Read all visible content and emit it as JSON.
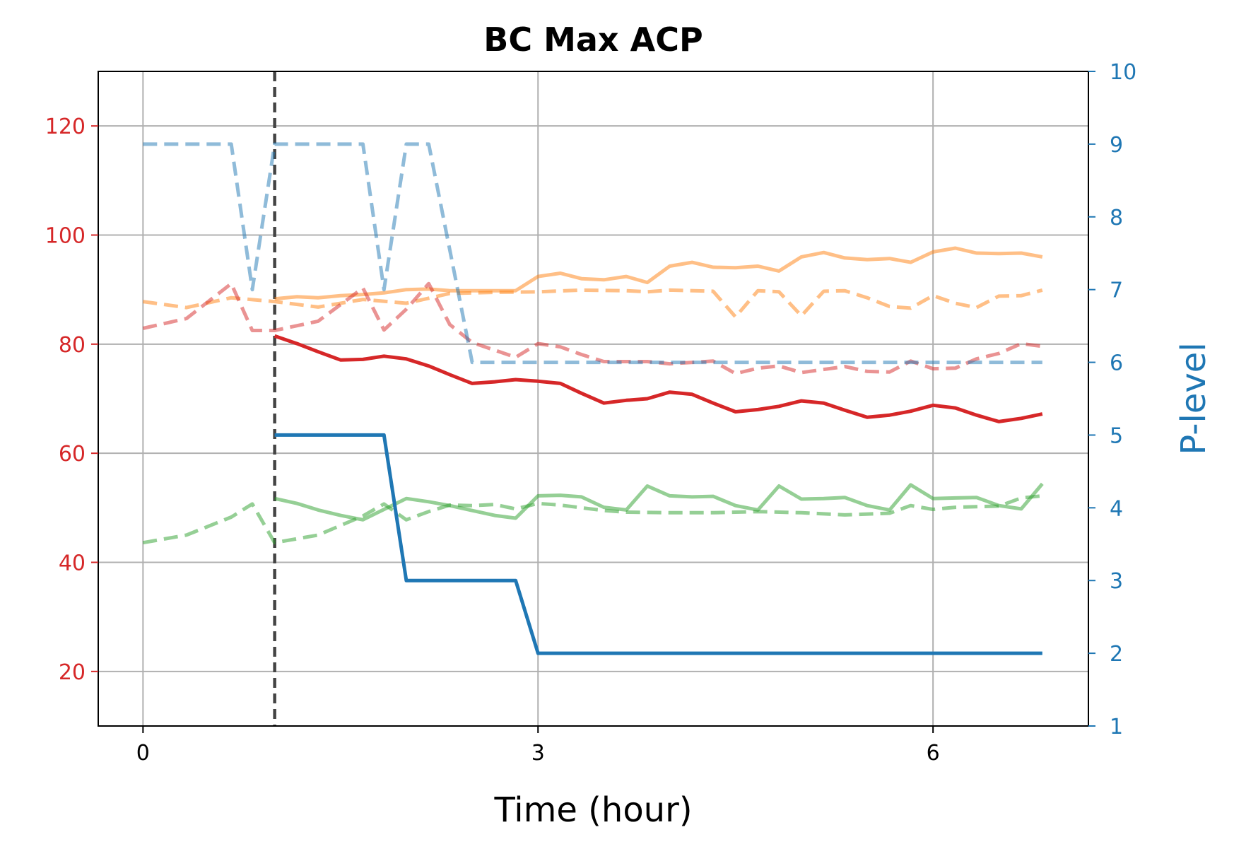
{
  "chart_data": {
    "type": "line",
    "title": "BC Max ACP",
    "xlabel": "Time (hour)",
    "ylabel": "",
    "y2label": "P-level",
    "xlim": [
      -0.34,
      7.18
    ],
    "ylim": [
      10,
      130
    ],
    "y2lim": [
      1,
      10
    ],
    "xticks": [
      0,
      3,
      6
    ],
    "yticks": [
      20,
      40,
      60,
      80,
      100,
      120
    ],
    "y2ticks": [
      1,
      2,
      3,
      4,
      5,
      6,
      7,
      8,
      9,
      10
    ],
    "grid": true,
    "vline": {
      "x": 1.0
    },
    "colors": {
      "left_axis": "#d62728",
      "right_axis": "#1f77b4",
      "vline": "#444444"
    },
    "series": [
      {
        "axis": "left",
        "color": "#ff7f0e",
        "style": "solid",
        "opacity": 0.5,
        "points": [
          [
            1.0,
            88.3
          ],
          [
            1.17,
            88.7
          ],
          [
            1.33,
            88.5
          ],
          [
            1.5,
            88.9
          ],
          [
            1.67,
            89.1
          ],
          [
            1.83,
            89.4
          ],
          [
            2.0,
            90.0
          ],
          [
            2.17,
            90.1
          ],
          [
            2.33,
            89.8
          ],
          [
            2.5,
            89.8
          ],
          [
            2.67,
            89.8
          ],
          [
            2.83,
            89.8
          ],
          [
            3.0,
            92.4
          ],
          [
            3.17,
            93.0
          ],
          [
            3.33,
            92.0
          ],
          [
            3.5,
            91.8
          ],
          [
            3.67,
            92.4
          ],
          [
            3.83,
            91.3
          ],
          [
            4.0,
            94.3
          ],
          [
            4.17,
            95.0
          ],
          [
            4.33,
            94.1
          ],
          [
            4.5,
            94.0
          ],
          [
            4.67,
            94.3
          ],
          [
            4.83,
            93.4
          ],
          [
            5.0,
            96.0
          ],
          [
            5.17,
            96.8
          ],
          [
            5.33,
            95.8
          ],
          [
            5.5,
            95.5
          ],
          [
            5.67,
            95.7
          ],
          [
            5.83,
            95.0
          ],
          [
            6.0,
            96.9
          ],
          [
            6.17,
            97.6
          ],
          [
            6.33,
            96.7
          ],
          [
            6.5,
            96.6
          ],
          [
            6.67,
            96.7
          ],
          [
            6.83,
            96.0
          ]
        ]
      },
      {
        "axis": "left",
        "color": "#ff7f0e",
        "style": "dashed",
        "opacity": 0.5,
        "points": [
          [
            0,
            87.8
          ],
          [
            0.33,
            86.7
          ],
          [
            0.67,
            88.5
          ],
          [
            1.0,
            87.8
          ],
          [
            1.33,
            86.8
          ],
          [
            1.67,
            88.2
          ],
          [
            2.0,
            87.5
          ],
          [
            2.33,
            89.3
          ],
          [
            2.67,
            89.5
          ],
          [
            3.0,
            89.6
          ],
          [
            3.33,
            89.9
          ],
          [
            3.67,
            89.8
          ],
          [
            3.83,
            89.6
          ],
          [
            4.0,
            89.9
          ],
          [
            4.33,
            89.7
          ],
          [
            4.5,
            85.0
          ],
          [
            4.67,
            89.8
          ],
          [
            4.83,
            89.6
          ],
          [
            5.0,
            85.2
          ],
          [
            5.17,
            89.7
          ],
          [
            5.33,
            89.8
          ],
          [
            5.5,
            88.5
          ],
          [
            5.67,
            86.9
          ],
          [
            5.83,
            86.6
          ],
          [
            6.0,
            88.9
          ],
          [
            6.17,
            87.5
          ],
          [
            6.33,
            86.7
          ],
          [
            6.5,
            88.8
          ],
          [
            6.67,
            88.9
          ],
          [
            6.83,
            89.9
          ]
        ]
      },
      {
        "axis": "left",
        "color": "#d62728",
        "style": "dashed",
        "opacity": 0.5,
        "points": [
          [
            0,
            82.9
          ],
          [
            0.33,
            84.7
          ],
          [
            0.67,
            91.1
          ],
          [
            0.83,
            82.5
          ],
          [
            1.0,
            82.5
          ],
          [
            1.33,
            84.2
          ],
          [
            1.67,
            90.3
          ],
          [
            1.83,
            82.6
          ],
          [
            2.0,
            86.4
          ],
          [
            2.17,
            91.1
          ],
          [
            2.33,
            83.6
          ],
          [
            2.5,
            80.3
          ],
          [
            2.67,
            78.9
          ],
          [
            2.83,
            77.6
          ],
          [
            3.0,
            80.1
          ],
          [
            3.17,
            79.5
          ],
          [
            3.33,
            78.1
          ],
          [
            3.5,
            76.8
          ],
          [
            3.67,
            76.8
          ],
          [
            3.83,
            76.8
          ],
          [
            4.0,
            76.4
          ],
          [
            4.33,
            76.9
          ],
          [
            4.5,
            74.6
          ],
          [
            4.67,
            75.6
          ],
          [
            4.83,
            76.0
          ],
          [
            5.0,
            74.8
          ],
          [
            5.33,
            75.9
          ],
          [
            5.5,
            75.0
          ],
          [
            5.67,
            74.9
          ],
          [
            5.83,
            76.9
          ],
          [
            6.0,
            75.5
          ],
          [
            6.17,
            75.6
          ],
          [
            6.33,
            77.3
          ],
          [
            6.5,
            78.3
          ],
          [
            6.67,
            80.1
          ],
          [
            6.83,
            79.6
          ]
        ]
      },
      {
        "axis": "left",
        "color": "#d62728",
        "style": "solid",
        "opacity": 1,
        "points": [
          [
            1.0,
            81.5
          ],
          [
            1.17,
            80.1
          ],
          [
            1.33,
            78.6
          ],
          [
            1.5,
            77.1
          ],
          [
            1.67,
            77.2
          ],
          [
            1.83,
            77.8
          ],
          [
            2.0,
            77.3
          ],
          [
            2.17,
            76.0
          ],
          [
            2.33,
            74.4
          ],
          [
            2.5,
            72.8
          ],
          [
            2.67,
            73.1
          ],
          [
            2.83,
            73.5
          ],
          [
            3.0,
            73.2
          ],
          [
            3.17,
            72.8
          ],
          [
            3.33,
            71.0
          ],
          [
            3.5,
            69.2
          ],
          [
            3.67,
            69.7
          ],
          [
            3.83,
            70.0
          ],
          [
            4.0,
            71.2
          ],
          [
            4.17,
            70.8
          ],
          [
            4.33,
            69.2
          ],
          [
            4.5,
            67.6
          ],
          [
            4.67,
            68.0
          ],
          [
            4.83,
            68.6
          ],
          [
            5.0,
            69.6
          ],
          [
            5.17,
            69.2
          ],
          [
            5.33,
            67.9
          ],
          [
            5.5,
            66.6
          ],
          [
            5.67,
            67.0
          ],
          [
            5.83,
            67.7
          ],
          [
            6.0,
            68.8
          ],
          [
            6.17,
            68.3
          ],
          [
            6.33,
            67.0
          ],
          [
            6.5,
            65.8
          ],
          [
            6.67,
            66.4
          ],
          [
            6.83,
            67.2
          ]
        ]
      },
      {
        "axis": "left",
        "color": "#2ca02c",
        "style": "solid",
        "opacity": 0.5,
        "points": [
          [
            1.0,
            51.7
          ],
          [
            1.17,
            50.8
          ],
          [
            1.33,
            49.6
          ],
          [
            1.5,
            48.6
          ],
          [
            1.67,
            47.8
          ],
          [
            1.83,
            49.7
          ],
          [
            2.0,
            51.7
          ],
          [
            2.17,
            51.1
          ],
          [
            2.33,
            50.4
          ],
          [
            2.5,
            49.5
          ],
          [
            2.67,
            48.6
          ],
          [
            2.83,
            48.1
          ],
          [
            3.0,
            52.2
          ],
          [
            3.17,
            52.3
          ],
          [
            3.33,
            52.0
          ],
          [
            3.5,
            50.1
          ],
          [
            3.67,
            49.6
          ],
          [
            3.83,
            54.0
          ],
          [
            4.0,
            52.2
          ],
          [
            4.17,
            52.0
          ],
          [
            4.33,
            52.1
          ],
          [
            4.5,
            50.4
          ],
          [
            4.67,
            49.6
          ],
          [
            4.83,
            54.0
          ],
          [
            5.0,
            51.6
          ],
          [
            5.17,
            51.7
          ],
          [
            5.33,
            51.9
          ],
          [
            5.5,
            50.4
          ],
          [
            5.67,
            49.6
          ],
          [
            5.83,
            54.2
          ],
          [
            6.0,
            51.7
          ],
          [
            6.17,
            51.8
          ],
          [
            6.33,
            51.9
          ],
          [
            6.5,
            50.4
          ],
          [
            6.67,
            49.8
          ],
          [
            6.83,
            54.4
          ]
        ]
      },
      {
        "axis": "left",
        "color": "#2ca02c",
        "style": "dashed",
        "opacity": 0.5,
        "points": [
          [
            0,
            43.6
          ],
          [
            0.33,
            45.0
          ],
          [
            0.67,
            48.3
          ],
          [
            0.83,
            50.7
          ],
          [
            1.0,
            43.6
          ],
          [
            1.33,
            45.0
          ],
          [
            1.67,
            48.5
          ],
          [
            1.83,
            50.7
          ],
          [
            2.0,
            47.8
          ],
          [
            2.17,
            49.3
          ],
          [
            2.33,
            50.5
          ],
          [
            2.5,
            50.4
          ],
          [
            2.67,
            50.6
          ],
          [
            2.83,
            49.8
          ],
          [
            3.0,
            50.8
          ],
          [
            3.17,
            50.5
          ],
          [
            3.33,
            50.0
          ],
          [
            3.5,
            49.5
          ],
          [
            3.67,
            49.2
          ],
          [
            4.0,
            49.1
          ],
          [
            4.33,
            49.1
          ],
          [
            4.67,
            49.3
          ],
          [
            5.0,
            49.1
          ],
          [
            5.33,
            48.7
          ],
          [
            5.67,
            49.0
          ],
          [
            5.83,
            50.4
          ],
          [
            6.0,
            49.7
          ],
          [
            6.17,
            50.1
          ],
          [
            6.33,
            50.2
          ],
          [
            6.5,
            50.3
          ],
          [
            6.67,
            51.8
          ],
          [
            6.83,
            52.2
          ]
        ]
      },
      {
        "axis": "right",
        "color": "#1f77b4",
        "style": "dashed",
        "opacity": 0.5,
        "points": [
          [
            0,
            9
          ],
          [
            0.67,
            9
          ],
          [
            0.83,
            7
          ],
          [
            1.0,
            9
          ],
          [
            1.67,
            9
          ],
          [
            1.83,
            7
          ],
          [
            2.0,
            9
          ],
          [
            2.17,
            9
          ],
          [
            2.5,
            6
          ],
          [
            6.83,
            6
          ]
        ]
      },
      {
        "axis": "right",
        "color": "#1f77b4",
        "style": "solid",
        "opacity": 1,
        "points": [
          [
            1.0,
            5
          ],
          [
            1.83,
            5
          ],
          [
            2.0,
            3
          ],
          [
            2.83,
            3
          ],
          [
            3.0,
            2
          ],
          [
            6.83,
            2
          ]
        ]
      }
    ]
  }
}
